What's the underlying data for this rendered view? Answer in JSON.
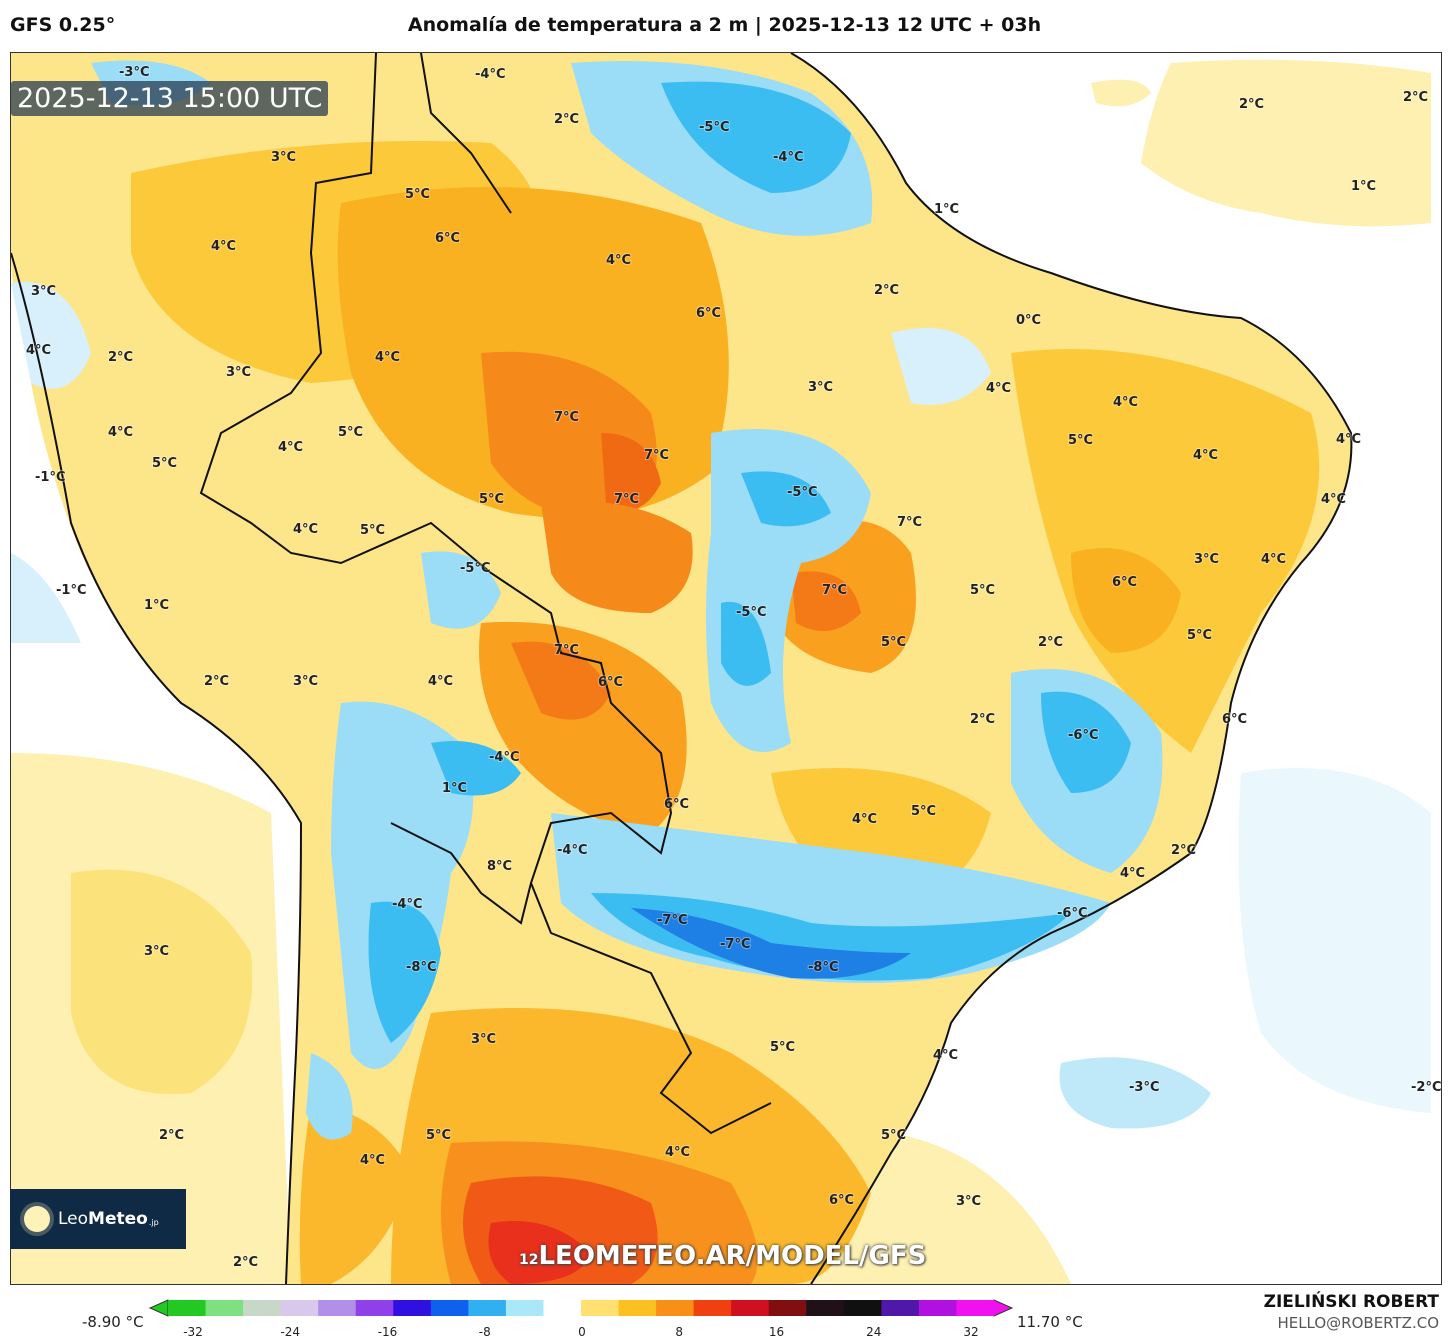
{
  "header": {
    "model": "GFS 0.25°",
    "title": "Anomalía de temperatura a 2 m | 2025-12-13 12 UTC + 03h"
  },
  "map": {
    "timestamp": "2025-12-13 15:00 UTC",
    "watermark": "LEOMETEO.AR/MODEL/GFS",
    "watermark_prefix": "12",
    "logo": {
      "part1": "Leo",
      "part2": "Meteo",
      "part3": ".jp"
    },
    "contour_labels": [
      "-3°C",
      "-4°C",
      "2°C",
      "-5°C",
      "-4°C",
      "2°C",
      "2°C",
      "1°C",
      "1°C",
      "3°C",
      "5°C",
      "6°C",
      "4°C",
      "4°C",
      "2°C",
      "6°C",
      "0°C",
      "3°C",
      "4°C",
      "2°C",
      "4°C",
      "3°C",
      "3°C",
      "4°C",
      "4°C",
      "7°C",
      "4°C",
      "5°C",
      "4°C",
      "7°C",
      "5°C",
      "4°C",
      "4°C",
      "5°C",
      "-1°C",
      "-5°C",
      "5°C",
      "7°C",
      "4°C",
      "7°C",
      "4°C",
      "5°C",
      "3°C",
      "4°C",
      "-5°C",
      "6°C",
      "-1°C",
      "7°C",
      "5°C",
      "1°C",
      "-5°C",
      "5°C",
      "2°C",
      "5°C",
      "7°C",
      "6°C",
      "4°C",
      "2°C",
      "3°C",
      "2°C",
      "6°C",
      "-6°C",
      "-4°C",
      "1°C",
      "6°C",
      "5°C",
      "4°C",
      "-4°C",
      "2°C",
      "8°C",
      "4°C",
      "-4°C",
      "-6°C",
      "-7°C",
      "-7°C",
      "3°C",
      "-8°C",
      "-8°C",
      "3°C",
      "5°C",
      "4°C",
      "-3°C",
      "-2°C",
      "2°C",
      "5°C",
      "5°C",
      "4°C",
      "4°C",
      "6°C",
      "3°C",
      "2°C"
    ]
  },
  "colorbar": {
    "min_label": "-8.90 °C",
    "max_label": "11.70 °C",
    "ticks": [
      "-32",
      "-24",
      "-16",
      "-8",
      "0",
      "8",
      "16",
      "24",
      "32"
    ],
    "colors": [
      "#22c922",
      "#7ee07e",
      "#c8d8c8",
      "#d8c8ec",
      "#b090e8",
      "#9040e8",
      "#3010e0",
      "#1060f0",
      "#30b0f0",
      "#a8e8f8",
      "#ffffff",
      "#ffe070",
      "#fcc020",
      "#f89018",
      "#f04010",
      "#d01020",
      "#801010",
      "#201018",
      "#101010",
      "#5018a8",
      "#b010e0",
      "#f010f0"
    ]
  },
  "footer": {
    "author": "ZIELIŃSKI ROBERT",
    "email": "HELLO@ROBERTZ.CO"
  }
}
